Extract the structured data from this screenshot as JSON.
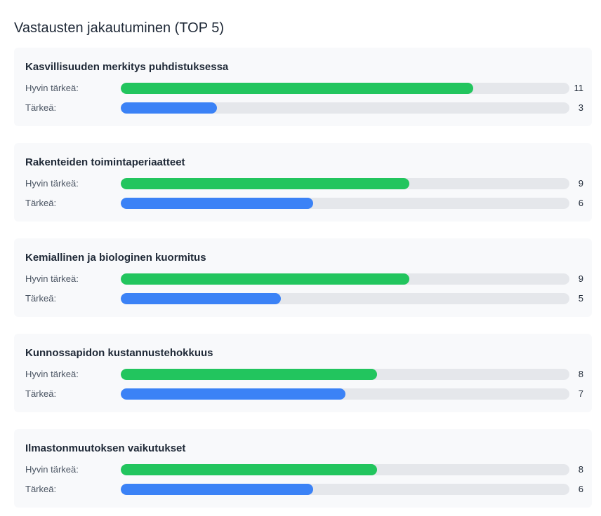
{
  "title": "Vastausten jakautuminen (TOP 5)",
  "colors": {
    "very_important": "#22c55e",
    "important": "#3b82f6",
    "track": "#e5e7eb"
  },
  "chart_data": {
    "type": "bar",
    "orientation": "horizontal",
    "title": "Vastausten jakautuminen (TOP 5)",
    "max": 14,
    "groups": [
      {
        "name": "Kasvillisuuden merkitys puhdistuksessa",
        "rows": [
          {
            "label": "Hyvin tärkeä:",
            "value": 11,
            "color": "#22c55e"
          },
          {
            "label": "Tärkeä:",
            "value": 3,
            "color": "#3b82f6"
          }
        ]
      },
      {
        "name": "Rakenteiden toimintaperiaatteet",
        "rows": [
          {
            "label": "Hyvin tärkeä:",
            "value": 9,
            "color": "#22c55e"
          },
          {
            "label": "Tärkeä:",
            "value": 6,
            "color": "#3b82f6"
          }
        ]
      },
      {
        "name": "Kemiallinen ja biologinen kuormitus",
        "rows": [
          {
            "label": "Hyvin tärkeä:",
            "value": 9,
            "color": "#22c55e"
          },
          {
            "label": "Tärkeä:",
            "value": 5,
            "color": "#3b82f6"
          }
        ]
      },
      {
        "name": "Kunnossapidon kustannustehokkuus",
        "rows": [
          {
            "label": "Hyvin tärkeä:",
            "value": 8,
            "color": "#22c55e"
          },
          {
            "label": "Tärkeä:",
            "value": 7,
            "color": "#3b82f6"
          }
        ]
      },
      {
        "name": "Ilmastonmuutoksen vaikutukset",
        "rows": [
          {
            "label": "Hyvin tärkeä:",
            "value": 8,
            "color": "#22c55e"
          },
          {
            "label": "Tärkeä:",
            "value": 6,
            "color": "#3b82f6"
          }
        ]
      }
    ]
  }
}
